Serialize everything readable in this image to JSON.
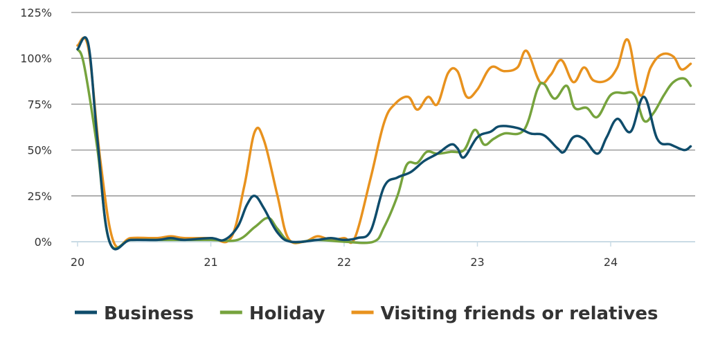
{
  "chart_data": {
    "type": "line",
    "title": "",
    "xlabel": "",
    "ylabel": "",
    "xlim": [
      20,
      24.6
    ],
    "ylim": [
      0,
      125
    ],
    "grid": true,
    "legend": "bottom",
    "y_ticks": [
      {
        "value": 0,
        "label": "0%"
      },
      {
        "value": 25,
        "label": "25%"
      },
      {
        "value": 50,
        "label": "50%"
      },
      {
        "value": 75,
        "label": "75%"
      },
      {
        "value": 100,
        "label": "100%"
      },
      {
        "value": 125,
        "label": "125%"
      }
    ],
    "x_ticks": [
      {
        "value": 20,
        "label": "20"
      },
      {
        "value": 21,
        "label": "21"
      },
      {
        "value": 22,
        "label": "22"
      },
      {
        "value": 23,
        "label": "23"
      },
      {
        "value": 24,
        "label": "24"
      }
    ],
    "series": [
      {
        "name": "Business",
        "color": "#0f4c6b",
        "points": [
          [
            20.0,
            105
          ],
          [
            20.08,
            108
          ],
          [
            20.15,
            55
          ],
          [
            20.24,
            0
          ],
          [
            20.4,
            1
          ],
          [
            20.6,
            1
          ],
          [
            20.7,
            2
          ],
          [
            20.8,
            1
          ],
          [
            21.0,
            2
          ],
          [
            21.1,
            1
          ],
          [
            21.2,
            8
          ],
          [
            21.27,
            20
          ],
          [
            21.33,
            25
          ],
          [
            21.4,
            18
          ],
          [
            21.5,
            5
          ],
          [
            21.6,
            0
          ],
          [
            21.8,
            1
          ],
          [
            21.9,
            2
          ],
          [
            22.0,
            1
          ],
          [
            22.1,
            2
          ],
          [
            22.2,
            6
          ],
          [
            22.3,
            30
          ],
          [
            22.4,
            35
          ],
          [
            22.5,
            38
          ],
          [
            22.6,
            44
          ],
          [
            22.7,
            48
          ],
          [
            22.8,
            53
          ],
          [
            22.85,
            51
          ],
          [
            22.9,
            46
          ],
          [
            23.0,
            57
          ],
          [
            23.1,
            60
          ],
          [
            23.17,
            63
          ],
          [
            23.3,
            62
          ],
          [
            23.4,
            59
          ],
          [
            23.5,
            58
          ],
          [
            23.6,
            51
          ],
          [
            23.65,
            49
          ],
          [
            23.72,
            57
          ],
          [
            23.8,
            56
          ],
          [
            23.9,
            48
          ],
          [
            23.97,
            57
          ],
          [
            24.05,
            67
          ],
          [
            24.15,
            60
          ],
          [
            24.25,
            79
          ],
          [
            24.35,
            56
          ],
          [
            24.45,
            53
          ],
          [
            24.55,
            50
          ],
          [
            24.6,
            52
          ]
        ]
      },
      {
        "name": "Holiday",
        "color": "#76a33d",
        "points": [
          [
            20.0,
            105
          ],
          [
            20.05,
            96
          ],
          [
            20.15,
            50
          ],
          [
            20.24,
            0
          ],
          [
            20.4,
            1
          ],
          [
            20.6,
            1
          ],
          [
            20.8,
            1
          ],
          [
            21.0,
            1
          ],
          [
            21.2,
            1
          ],
          [
            21.33,
            8
          ],
          [
            21.43,
            13
          ],
          [
            21.5,
            7
          ],
          [
            21.6,
            0
          ],
          [
            21.8,
            1
          ],
          [
            22.0,
            0
          ],
          [
            22.22,
            0
          ],
          [
            22.3,
            8
          ],
          [
            22.4,
            25
          ],
          [
            22.47,
            42
          ],
          [
            22.55,
            43
          ],
          [
            22.62,
            49
          ],
          [
            22.7,
            48
          ],
          [
            22.8,
            49
          ],
          [
            22.9,
            50
          ],
          [
            22.98,
            61
          ],
          [
            23.05,
            53
          ],
          [
            23.12,
            56
          ],
          [
            23.2,
            59
          ],
          [
            23.35,
            61
          ],
          [
            23.45,
            83
          ],
          [
            23.5,
            86
          ],
          [
            23.58,
            78
          ],
          [
            23.67,
            85
          ],
          [
            23.73,
            73
          ],
          [
            23.82,
            73
          ],
          [
            23.9,
            68
          ],
          [
            24.0,
            80
          ],
          [
            24.1,
            81
          ],
          [
            24.18,
            80
          ],
          [
            24.25,
            66
          ],
          [
            24.32,
            70
          ],
          [
            24.4,
            80
          ],
          [
            24.47,
            87
          ],
          [
            24.55,
            89
          ],
          [
            24.6,
            85
          ]
        ]
      },
      {
        "name": "Visiting friends or relatives",
        "color": "#e8921e",
        "points": [
          [
            20.0,
            107
          ],
          [
            20.08,
            106
          ],
          [
            20.17,
            45
          ],
          [
            20.27,
            0
          ],
          [
            20.4,
            2
          ],
          [
            20.6,
            2
          ],
          [
            20.7,
            3
          ],
          [
            20.8,
            2
          ],
          [
            21.0,
            2
          ],
          [
            21.15,
            2
          ],
          [
            21.25,
            30
          ],
          [
            21.33,
            60
          ],
          [
            21.4,
            55
          ],
          [
            21.5,
            25
          ],
          [
            21.58,
            2
          ],
          [
            21.7,
            0
          ],
          [
            21.8,
            3
          ],
          [
            21.9,
            1
          ],
          [
            22.0,
            2
          ],
          [
            22.08,
            2
          ],
          [
            22.2,
            35
          ],
          [
            22.3,
            65
          ],
          [
            22.38,
            75
          ],
          [
            22.48,
            79
          ],
          [
            22.55,
            72
          ],
          [
            22.63,
            79
          ],
          [
            22.7,
            75
          ],
          [
            22.78,
            92
          ],
          [
            22.85,
            93
          ],
          [
            22.92,
            79
          ],
          [
            23.0,
            83
          ],
          [
            23.1,
            95
          ],
          [
            23.2,
            93
          ],
          [
            23.3,
            95
          ],
          [
            23.37,
            104
          ],
          [
            23.47,
            87
          ],
          [
            23.55,
            91
          ],
          [
            23.63,
            99
          ],
          [
            23.72,
            87
          ],
          [
            23.8,
            95
          ],
          [
            23.87,
            88
          ],
          [
            23.97,
            88
          ],
          [
            24.05,
            95
          ],
          [
            24.13,
            110
          ],
          [
            24.22,
            80
          ],
          [
            24.3,
            95
          ],
          [
            24.38,
            102
          ],
          [
            24.47,
            101
          ],
          [
            24.53,
            94
          ],
          [
            24.6,
            97
          ]
        ]
      }
    ]
  }
}
